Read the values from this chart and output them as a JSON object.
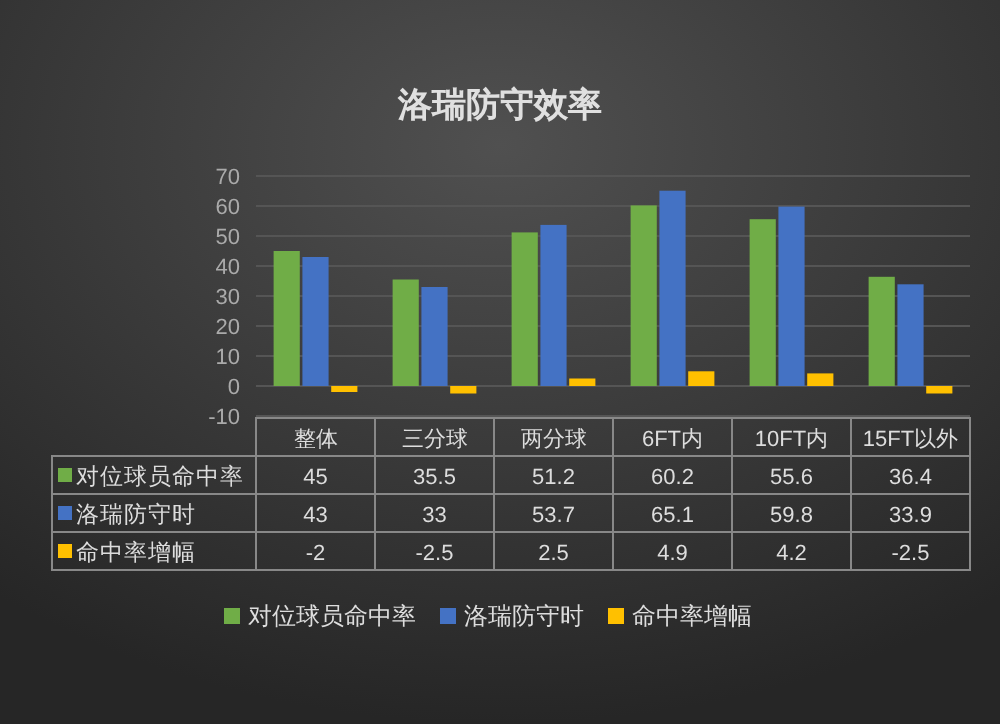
{
  "chart_data": {
    "type": "bar",
    "title": "洛瑞防守效率",
    "categories": [
      "整体",
      "三分球",
      "两分球",
      "6FT内",
      "10FT内",
      "15FT以外"
    ],
    "series": [
      {
        "name": "对位球员命中率",
        "color": "#70ad47",
        "values": [
          45,
          35.5,
          51.2,
          60.2,
          55.6,
          36.4
        ]
      },
      {
        "name": "洛瑞防守时",
        "color": "#4472c4",
        "values": [
          43,
          33,
          53.7,
          65.1,
          59.8,
          33.9
        ]
      },
      {
        "name": "命中率增幅",
        "color": "#ffc000",
        "values": [
          -2,
          -2.5,
          2.5,
          4.9,
          4.2,
          -2.5
        ]
      }
    ],
    "ylim": [
      -10,
      70
    ],
    "yticks": [
      -10,
      0,
      10,
      20,
      30,
      40,
      50,
      60,
      70
    ],
    "grid": "y",
    "data_labels": true,
    "legend": "bottom"
  }
}
